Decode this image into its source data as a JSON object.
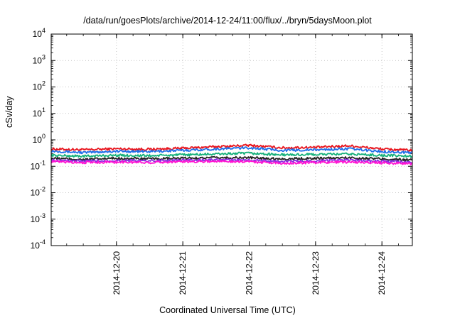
{
  "chart_data": {
    "type": "line",
    "title": "/data/run/goesPlots/archive/2014-12-24/11:00/flux/../bryn/5daysMoon.plot",
    "xlabel": "Coordinated Universal Time (UTC)",
    "ylabel": "cSv/day",
    "yscale": "log",
    "ylim": [
      0.0001,
      10000
    ],
    "xlim": [
      "2014-12-19 00:24",
      "2014-12-24 11:00"
    ],
    "grid": true,
    "y_ticks": [
      {
        "value": 0.0001,
        "base": "10",
        "exp": "-4"
      },
      {
        "value": 0.001,
        "base": "10",
        "exp": "-3"
      },
      {
        "value": 0.01,
        "base": "10",
        "exp": "-2"
      },
      {
        "value": 0.1,
        "base": "10",
        "exp": "-1"
      },
      {
        "value": 1,
        "base": "10",
        "exp": "0"
      },
      {
        "value": 10,
        "base": "10",
        "exp": "1"
      },
      {
        "value": 100,
        "base": "10",
        "exp": "2"
      },
      {
        "value": 1000,
        "base": "10",
        "exp": "3"
      },
      {
        "value": 10000,
        "base": "10",
        "exp": "4"
      }
    ],
    "x_ticks": [
      "2014-12-20",
      "2014-12-21",
      "2014-12-22",
      "2014-12-23",
      "2014-12-24"
    ],
    "x": [
      "2014-12-19 00:24",
      "2014-12-19 12:00",
      "2014-12-20 00:00",
      "2014-12-20 12:00",
      "2014-12-21 00:00",
      "2014-12-21 12:00",
      "2014-12-22 00:00",
      "2014-12-22 12:00",
      "2014-12-23 00:00",
      "2014-12-23 12:00",
      "2014-12-24 00:00",
      "2014-12-24 11:00"
    ],
    "series": [
      {
        "color": "#e8141c",
        "values": [
          0.45,
          0.42,
          0.46,
          0.44,
          0.48,
          0.55,
          0.62,
          0.5,
          0.52,
          0.6,
          0.45,
          0.4
        ]
      },
      {
        "color": "#1f6ee8",
        "values": [
          0.38,
          0.33,
          0.37,
          0.36,
          0.4,
          0.45,
          0.5,
          0.4,
          0.42,
          0.46,
          0.36,
          0.33
        ]
      },
      {
        "color": "#14b07a",
        "values": [
          0.26,
          0.24,
          0.26,
          0.25,
          0.27,
          0.29,
          0.31,
          0.27,
          0.28,
          0.29,
          0.26,
          0.24
        ]
      },
      {
        "color": "#222222",
        "values": [
          0.2,
          0.18,
          0.2,
          0.19,
          0.2,
          0.21,
          0.21,
          0.19,
          0.2,
          0.21,
          0.19,
          0.17
        ]
      },
      {
        "color": "#8a2be2",
        "values": [
          0.17,
          0.155,
          0.165,
          0.16,
          0.17,
          0.175,
          0.17,
          0.15,
          0.16,
          0.17,
          0.155,
          0.14
        ]
      },
      {
        "color": "#ff14d2",
        "values": [
          0.15,
          0.14,
          0.145,
          0.14,
          0.15,
          0.155,
          0.15,
          0.13,
          0.14,
          0.145,
          0.135,
          0.125
        ]
      }
    ]
  }
}
